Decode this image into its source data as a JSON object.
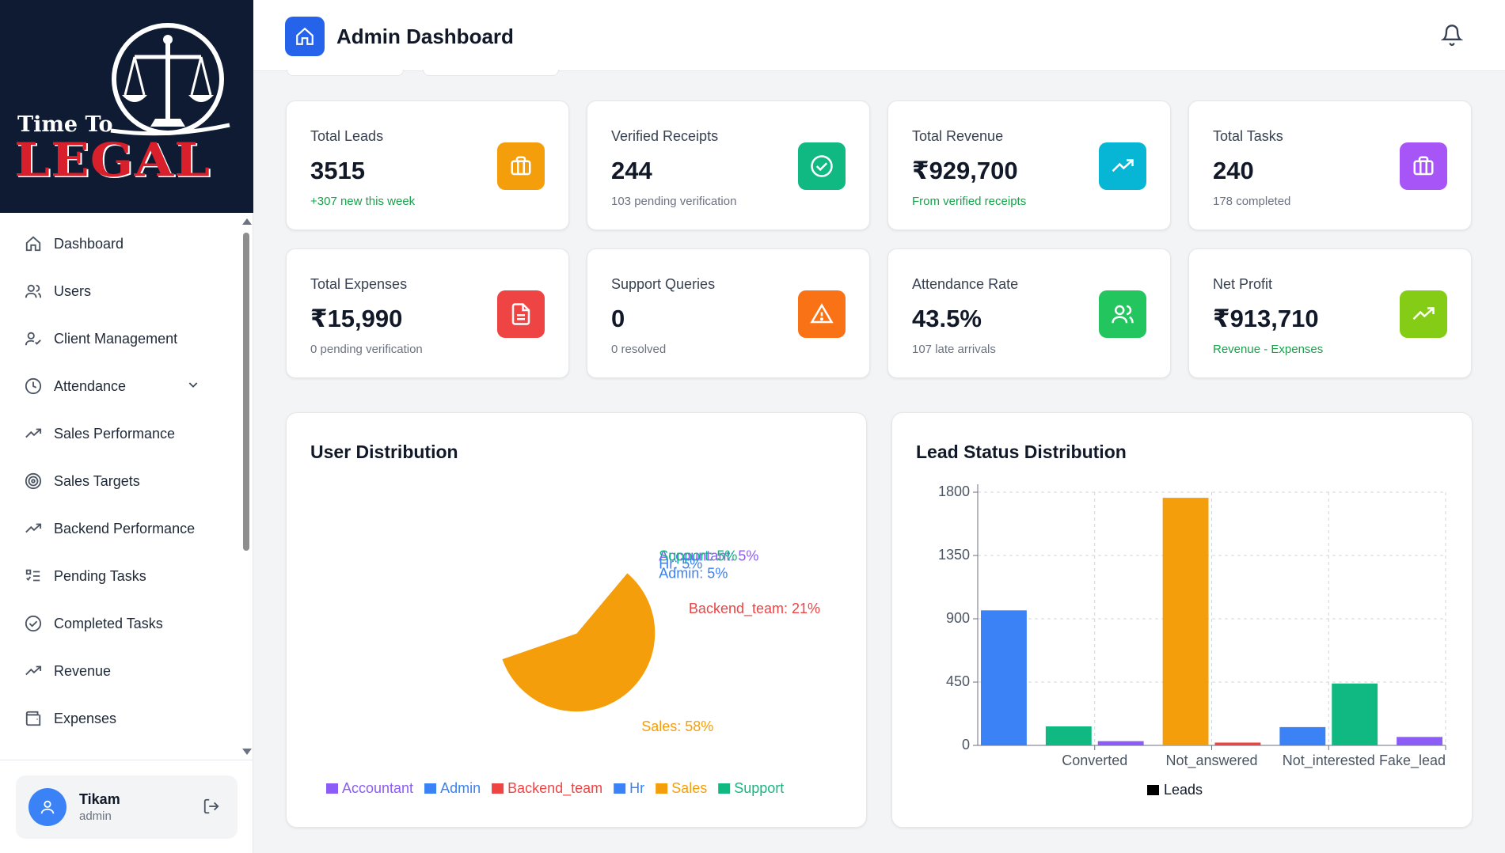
{
  "brand": {
    "line1": "Time To",
    "line2": "LEGAL"
  },
  "header": {
    "title": "Admin Dashboard",
    "icon": "home-icon",
    "notification_icon": "bell-icon"
  },
  "sidebar": {
    "items": [
      {
        "label": "Dashboard",
        "icon": "home-icon"
      },
      {
        "label": "Users",
        "icon": "users-icon"
      },
      {
        "label": "Client Management",
        "icon": "user-check-icon"
      },
      {
        "label": "Attendance",
        "icon": "clock-icon",
        "expandable": true
      },
      {
        "label": "Sales Performance",
        "icon": "trending-up-icon"
      },
      {
        "label": "Sales Targets",
        "icon": "target-icon"
      },
      {
        "label": "Backend Performance",
        "icon": "trending-up-icon"
      },
      {
        "label": "Pending Tasks",
        "icon": "list-todo-icon"
      },
      {
        "label": "Completed Tasks",
        "icon": "check-circle-icon"
      },
      {
        "label": "Revenue",
        "icon": "trending-up-icon"
      },
      {
        "label": "Expenses",
        "icon": "wallet-icon"
      }
    ],
    "user": {
      "name": "Tikam",
      "role": "admin"
    }
  },
  "stats": [
    {
      "label": "Total Leads",
      "value": "3515",
      "sub": "+307 new this week",
      "sub_color": "green",
      "icon": "briefcase-icon",
      "color": "#f59e0b"
    },
    {
      "label": "Verified Receipts",
      "value": "244",
      "sub": "103 pending verification",
      "sub_color": "gray",
      "icon": "check-circle-icon",
      "color": "#10b981"
    },
    {
      "label": "Total Revenue",
      "value": "₹929,700",
      "sub": "From verified receipts",
      "sub_color": "green",
      "icon": "trending-up-icon",
      "color": "#06b6d4"
    },
    {
      "label": "Total Tasks",
      "value": "240",
      "sub": "178 completed",
      "sub_color": "gray",
      "icon": "briefcase-icon",
      "color": "#a855f7"
    },
    {
      "label": "Total Expenses",
      "value": "₹15,990",
      "sub": "0 pending verification",
      "sub_color": "gray",
      "icon": "file-text-icon",
      "color": "#ef4444"
    },
    {
      "label": "Support Queries",
      "value": "0",
      "sub": "0 resolved",
      "sub_color": "gray",
      "icon": "alert-triangle-icon",
      "color": "#f97316"
    },
    {
      "label": "Attendance Rate",
      "value": "43.5%",
      "sub": "107 late arrivals",
      "sub_color": "gray",
      "icon": "users-icon",
      "color": "#22c55e"
    },
    {
      "label": "Net Profit",
      "value": "₹913,710",
      "sub": "Revenue - Expenses",
      "sub_color": "green",
      "icon": "trending-up-icon",
      "color": "#84cc16"
    }
  ],
  "charts": {
    "user_title": "User Distribution",
    "lead_title": "Lead Status Distribution"
  },
  "chart_data": [
    {
      "type": "pie",
      "title": "User Distribution",
      "slices": [
        {
          "name": "Accountant",
          "value": 5,
          "label": "Accountant: 5%",
          "color": "#8b5cf6"
        },
        {
          "name": "Support",
          "value": 5,
          "label": "Support: 5%",
          "color": "#10b981"
        },
        {
          "name": "Hr",
          "value": 5,
          "label": "Hr: 5%",
          "color": "#3b82f6"
        },
        {
          "name": "Admin",
          "value": 5,
          "label": "Admin: 5%",
          "color": "#3b82f6"
        },
        {
          "name": "Backend_team",
          "value": 21,
          "label": "Backend_team: 21%",
          "color": "#ef4444"
        },
        {
          "name": "Sales",
          "value": 58,
          "label": "Sales: 58%",
          "color": "#f59e0b"
        }
      ],
      "legend": [
        {
          "name": "Accountant",
          "color": "#8b5cf6"
        },
        {
          "name": "Admin",
          "color": "#3b82f6"
        },
        {
          "name": "Backend_team",
          "color": "#ef4444"
        },
        {
          "name": "Hr",
          "color": "#3b82f6"
        },
        {
          "name": "Sales",
          "color": "#f59e0b"
        },
        {
          "name": "Support",
          "color": "#10b981"
        }
      ],
      "legend_position": "bottom"
    },
    {
      "type": "bar",
      "title": "Lead Status Distribution",
      "ylim": [
        0,
        1800
      ],
      "yticks": [
        0,
        450,
        900,
        1350,
        1800
      ],
      "xtick_labels": [
        "Converted",
        "Not_answered",
        "Not_interested",
        "Fake_lead"
      ],
      "bars": [
        {
          "value": 960,
          "color": "#3b82f6"
        },
        {
          "value": 135,
          "color": "#10b981"
        },
        {
          "value": 30,
          "color": "#8b5cf6"
        },
        {
          "value": 1760,
          "color": "#f59e0b"
        },
        {
          "value": 20,
          "color": "#ef4444"
        },
        {
          "value": 130,
          "color": "#3b82f6"
        },
        {
          "value": 440,
          "color": "#10b981"
        },
        {
          "value": 60,
          "color": "#8b5cf6"
        }
      ],
      "legend": [
        {
          "name": "Leads",
          "color": "#000000"
        }
      ],
      "legend_position": "bottom",
      "grid": true
    }
  ]
}
